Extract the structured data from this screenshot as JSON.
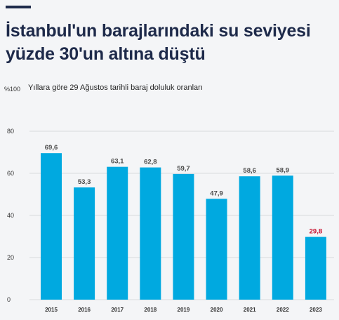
{
  "headline": "İstanbul'un barajlarındaki su seviyesi yüzde 30'un altına düştü",
  "chart_data": {
    "type": "bar",
    "title": "Yıllara göre 29 Ağustos tarihli baraj doluluk oranları",
    "unit_label": "%100",
    "categories": [
      "2015",
      "2016",
      "2017",
      "2018",
      "2019",
      "2020",
      "2021",
      "2022",
      "2023"
    ],
    "values": [
      69.6,
      53.3,
      63.1,
      62.8,
      59.7,
      47.9,
      58.6,
      58.9,
      29.8
    ],
    "value_labels": [
      "69,6",
      "53,3",
      "63,1",
      "62,8",
      "59,7",
      "47,9",
      "58,6",
      "58,9",
      "29,8"
    ],
    "y_ticks": [
      0,
      20,
      40,
      60,
      80
    ],
    "ylim": [
      0,
      100
    ],
    "grid": true,
    "bar_color": "#00a9e0",
    "highlight_color": "#c8102e",
    "highlight_index": 8
  }
}
